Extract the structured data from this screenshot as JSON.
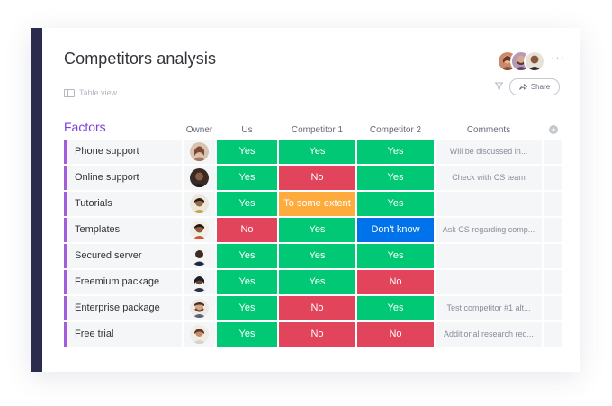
{
  "board": {
    "title": "Competitors analysis",
    "view_label": "Table view",
    "share_label": "Share",
    "more_label": "···"
  },
  "group": {
    "title": "Factors",
    "color": "#a25ddc"
  },
  "columns": {
    "owner": "Owner",
    "us": "Us",
    "competitor1": "Competitor 1",
    "competitor2": "Competitor 2",
    "comments": "Comments",
    "add": "+"
  },
  "status_colors": {
    "Yes": "#00c875",
    "No": "#e2445c",
    "To some extent": "#fdab3d",
    "Don't know": "#0073ea"
  },
  "rows": [
    {
      "name": "Phone support",
      "us": "Yes",
      "c1": "Yes",
      "c2": "Yes",
      "comment": "Will be discussed in..."
    },
    {
      "name": "Online support",
      "us": "Yes",
      "c1": "No",
      "c2": "Yes",
      "comment": "Check with CS team"
    },
    {
      "name": "Tutorials",
      "us": "Yes",
      "c1": "To some extent",
      "c2": "Yes",
      "comment": ""
    },
    {
      "name": "Templates",
      "us": "No",
      "c1": "Yes",
      "c2": "Don't know",
      "comment": "Ask CS regarding comp..."
    },
    {
      "name": "Secured server",
      "us": "Yes",
      "c1": "Yes",
      "c2": "Yes",
      "comment": ""
    },
    {
      "name": "Freemium package",
      "us": "Yes",
      "c1": "Yes",
      "c2": "No",
      "comment": ""
    },
    {
      "name": "Enterprise package",
      "us": "Yes",
      "c1": "No",
      "c2": "Yes",
      "comment": "Test competitor #1 alt..."
    },
    {
      "name": "Free trial",
      "us": "Yes",
      "c1": "No",
      "c2": "No",
      "comment": "Additional research req..."
    }
  ]
}
